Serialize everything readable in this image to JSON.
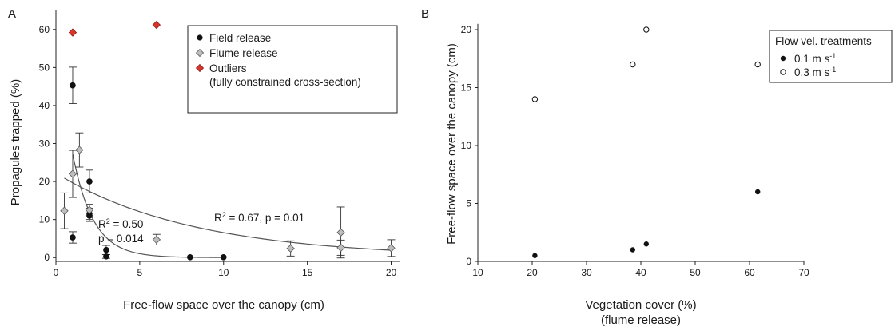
{
  "chart_data": [
    {
      "panel": "A",
      "type": "scatter",
      "xlabel": "Free-flow space over the canopy (cm)",
      "ylabel": "Propagules trapped (%)",
      "xlim": [
        0,
        20.5
      ],
      "ylim": [
        -1,
        65
      ],
      "xticks": [
        0,
        5,
        10,
        15,
        20
      ],
      "yticks": [
        0,
        10,
        20,
        30,
        40,
        50,
        60
      ],
      "legend_position": "top-right",
      "legend": {
        "field": "Field release",
        "flume": "Flume release",
        "outliers": "Outliers",
        "outliers_note": "(fully constrained cross-section)"
      },
      "series": [
        {
          "name": "Field release",
          "marker": "circle-filled",
          "color": "#111111",
          "points": [
            {
              "x": 1,
              "y": 45.3,
              "err": 4.8
            },
            {
              "x": 1,
              "y": 5.3,
              "err": 1.5
            },
            {
              "x": 2,
              "y": 20,
              "err": 3
            },
            {
              "x": 2,
              "y": 11.5,
              "err": 1.5
            },
            {
              "x": 2,
              "y": 11,
              "err": 1.5
            },
            {
              "x": 3,
              "y": 2,
              "err": 1.2
            },
            {
              "x": 3,
              "y": 0.3,
              "err": 0.5
            },
            {
              "x": 8,
              "y": 0.1,
              "err": 0
            },
            {
              "x": 10,
              "y": 0.1,
              "err": 0
            }
          ]
        },
        {
          "name": "Flume release",
          "marker": "diamond",
          "color": "#bdbdbd",
          "points": [
            {
              "x": 0.5,
              "y": 12.3,
              "err": 4.7
            },
            {
              "x": 1,
              "y": 22,
              "err": 6.2
            },
            {
              "x": 1.4,
              "y": 28.3,
              "err": 4.5
            },
            {
              "x": 2,
              "y": 12.5,
              "err": 1.5
            },
            {
              "x": 6,
              "y": 4.7,
              "err": 1.4
            },
            {
              "x": 14,
              "y": 2.4,
              "err": 2
            },
            {
              "x": 17,
              "y": 6.6,
              "err": 6.7
            },
            {
              "x": 17,
              "y": 2.6,
              "err": 2
            },
            {
              "x": 20,
              "y": 2.5,
              "err": 2.2
            }
          ]
        },
        {
          "name": "Outliers",
          "marker": "diamond",
          "color": "#d9352b",
          "points": [
            {
              "x": 1,
              "y": 59.2
            },
            {
              "x": 6,
              "y": 61.2
            }
          ]
        }
      ],
      "fits": [
        {
          "label": "R² = 0.50, p = 0.014",
          "from_x": 1,
          "to_x": 10,
          "a": 61.9,
          "k": 0.82
        },
        {
          "label": "R² = 0.67, p = 0.01",
          "from_x": 0.5,
          "to_x": 20,
          "a": 22.2,
          "k": 0.122
        }
      ],
      "annotations": {
        "fit1_r2": "R² = 0.50",
        "fit1_p": "p = 0.014",
        "fit2": "R² = 0.67, p = 0.01"
      }
    },
    {
      "panel": "B",
      "type": "scatter",
      "xlabel": "Vegetation cover (%)",
      "xlabel2": "(flume release)",
      "ylabel": "Free-flow space over the canopy (cm)",
      "xlim": [
        10,
        70
      ],
      "ylim": [
        0,
        20.5
      ],
      "xticks": [
        10,
        20,
        30,
        40,
        50,
        60,
        70
      ],
      "yticks": [
        0,
        5,
        10,
        15,
        20
      ],
      "legend_position": "top-right",
      "legend": {
        "title": "Flow vel. treatments",
        "slow": "0.1 m s",
        "fast": "0.3 m s",
        "unit_exp": "-1"
      },
      "series": [
        {
          "name": "0.1 m s-1",
          "marker": "circle-filled",
          "color": "#111111",
          "points": [
            {
              "x": 20.5,
              "y": 0.5
            },
            {
              "x": 38.5,
              "y": 1
            },
            {
              "x": 41,
              "y": 1.5
            },
            {
              "x": 61.5,
              "y": 6
            }
          ]
        },
        {
          "name": "0.3 m s-1",
          "marker": "circle-open",
          "color": "#111111",
          "points": [
            {
              "x": 20.5,
              "y": 14
            },
            {
              "x": 38.5,
              "y": 17
            },
            {
              "x": 41,
              "y": 20
            },
            {
              "x": 61.5,
              "y": 17
            }
          ]
        }
      ]
    }
  ]
}
